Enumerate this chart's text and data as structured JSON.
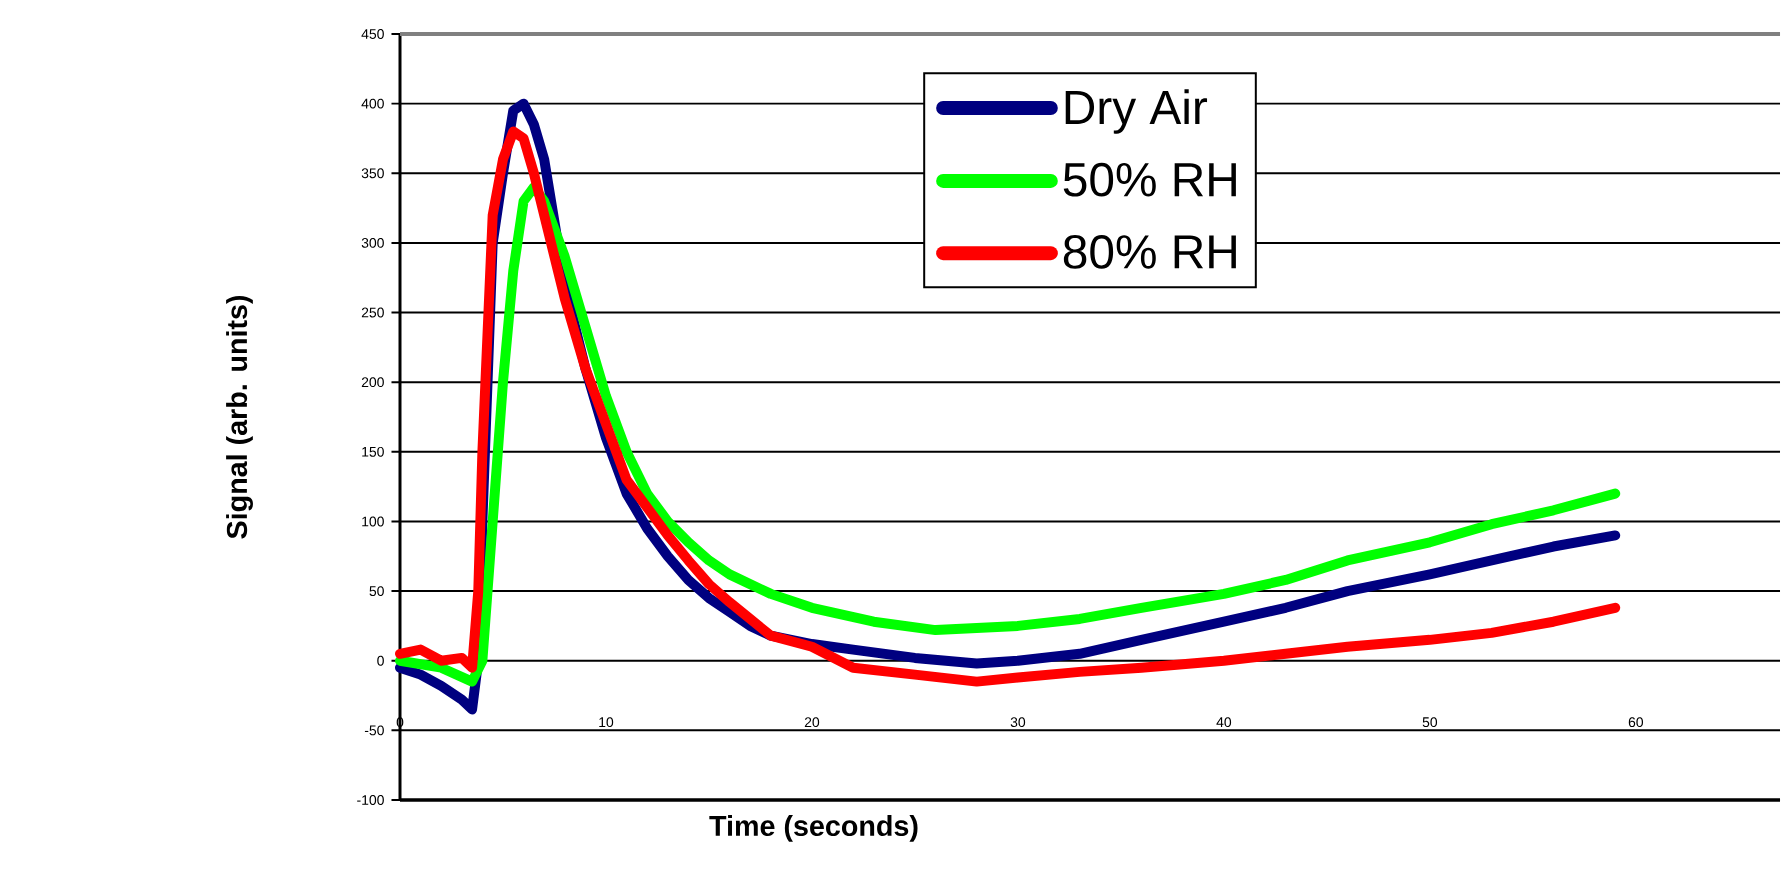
{
  "chart_data": {
    "type": "line",
    "xlabel": "Time (seconds)",
    "ylabel": "Signal (arb. units)",
    "xlim": [
      0,
      67
    ],
    "ylim": [
      -100,
      450
    ],
    "xticks": [
      0,
      10,
      20,
      30,
      40,
      50,
      60
    ],
    "yticks": [
      -100,
      -50,
      0,
      50,
      100,
      150,
      200,
      250,
      300,
      350,
      400,
      450
    ],
    "grid": "y",
    "legend": "top",
    "line_style": "solid",
    "marker": "none",
    "series": [
      {
        "name": "Dry Air",
        "color": "#000080",
        "x": [
          0,
          1,
          2,
          3,
          3.5,
          3.8,
          4,
          4.5,
          5,
          5.5,
          6,
          6.5,
          7,
          8,
          9,
          10,
          11,
          12,
          13,
          14,
          15,
          16,
          17,
          18,
          20,
          22,
          25,
          28,
          30,
          33,
          36,
          40,
          43,
          46,
          50,
          53,
          56,
          59
        ],
        "values": [
          -5,
          -10,
          -18,
          -28,
          -35,
          0,
          100,
          300,
          350,
          395,
          400,
          385,
          360,
          270,
          210,
          160,
          120,
          95,
          75,
          58,
          45,
          35,
          25,
          18,
          12,
          8,
          2,
          -2,
          0,
          5,
          15,
          28,
          38,
          50,
          62,
          72,
          82,
          90
        ]
      },
      {
        "name": "50% RH",
        "color": "#00ff00",
        "x": [
          0,
          2,
          3.5,
          4,
          4.5,
          5,
          5.5,
          6,
          6.5,
          7,
          8,
          9,
          10,
          11,
          12,
          13,
          14,
          15,
          16,
          18,
          20,
          23,
          26,
          30,
          33,
          36,
          40,
          43,
          46,
          50,
          53,
          56,
          59
        ],
        "values": [
          0,
          -5,
          -15,
          0,
          100,
          200,
          280,
          330,
          340,
          330,
          290,
          240,
          190,
          150,
          120,
          100,
          85,
          72,
          62,
          48,
          38,
          28,
          22,
          25,
          30,
          38,
          48,
          58,
          72,
          85,
          98,
          108,
          120
        ]
      },
      {
        "name": "80% RH",
        "color": "#ff0000",
        "x": [
          0,
          1,
          2,
          3,
          3.5,
          3.8,
          4,
          4.5,
          5,
          5.5,
          6,
          6.5,
          7,
          8,
          9,
          10,
          11,
          12,
          13,
          14,
          15,
          16,
          17,
          18,
          20,
          22,
          25,
          28,
          30,
          33,
          36,
          40,
          43,
          46,
          50,
          53,
          56,
          59
        ],
        "values": [
          5,
          8,
          0,
          2,
          -5,
          50,
          150,
          320,
          360,
          380,
          375,
          350,
          320,
          260,
          210,
          170,
          130,
          110,
          90,
          72,
          55,
          42,
          30,
          18,
          10,
          -5,
          -10,
          -15,
          -12,
          -8,
          -5,
          0,
          5,
          10,
          15,
          20,
          28,
          38
        ]
      }
    ]
  }
}
